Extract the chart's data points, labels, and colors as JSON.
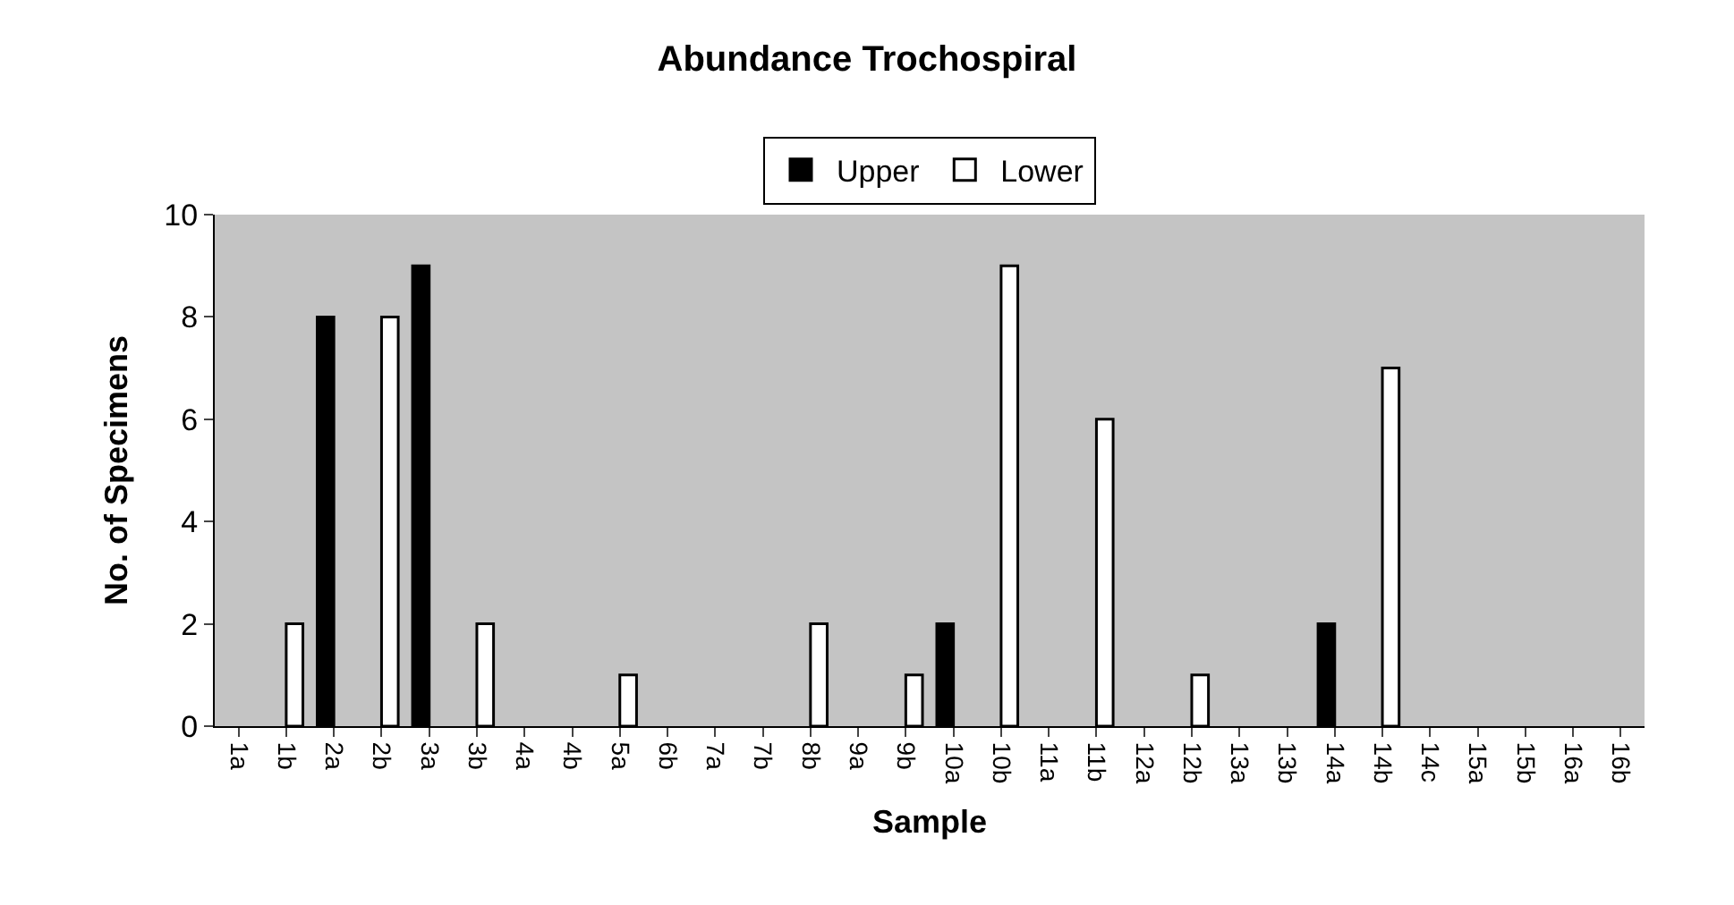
{
  "chart_data": {
    "type": "bar",
    "title": "Abundance Trochospiral",
    "xlabel": "Sample",
    "ylabel": "No. of Specimens",
    "categories": [
      "1a",
      "1b",
      "2a",
      "2b",
      "3a",
      "3b",
      "4a",
      "4b",
      "5a",
      "6b",
      "7a",
      "7b",
      "8b",
      "9a",
      "9b",
      "10a",
      "10b",
      "11a",
      "11b",
      "12a",
      "12b",
      "13a",
      "13b",
      "14a",
      "14b",
      "14c",
      "15a",
      "15b",
      "16a",
      "16b"
    ],
    "series": [
      {
        "name": "Upper",
        "color": "#000000",
        "values": [
          null,
          null,
          8,
          null,
          9,
          null,
          null,
          null,
          null,
          null,
          null,
          null,
          null,
          null,
          null,
          2,
          null,
          null,
          null,
          null,
          null,
          null,
          null,
          2,
          null,
          null,
          null,
          null,
          null,
          null
        ]
      },
      {
        "name": "Lower",
        "color": "#ffffff",
        "values": [
          null,
          2,
          null,
          8,
          null,
          2,
          null,
          null,
          1,
          null,
          null,
          null,
          2,
          null,
          1,
          null,
          9,
          null,
          6,
          null,
          1,
          null,
          null,
          null,
          7,
          null,
          null,
          null,
          null,
          null
        ]
      }
    ],
    "ylim": [
      0,
      10
    ],
    "yticks": [
      0,
      2,
      4,
      6,
      8,
      10
    ],
    "grid": false,
    "legend": "top"
  }
}
